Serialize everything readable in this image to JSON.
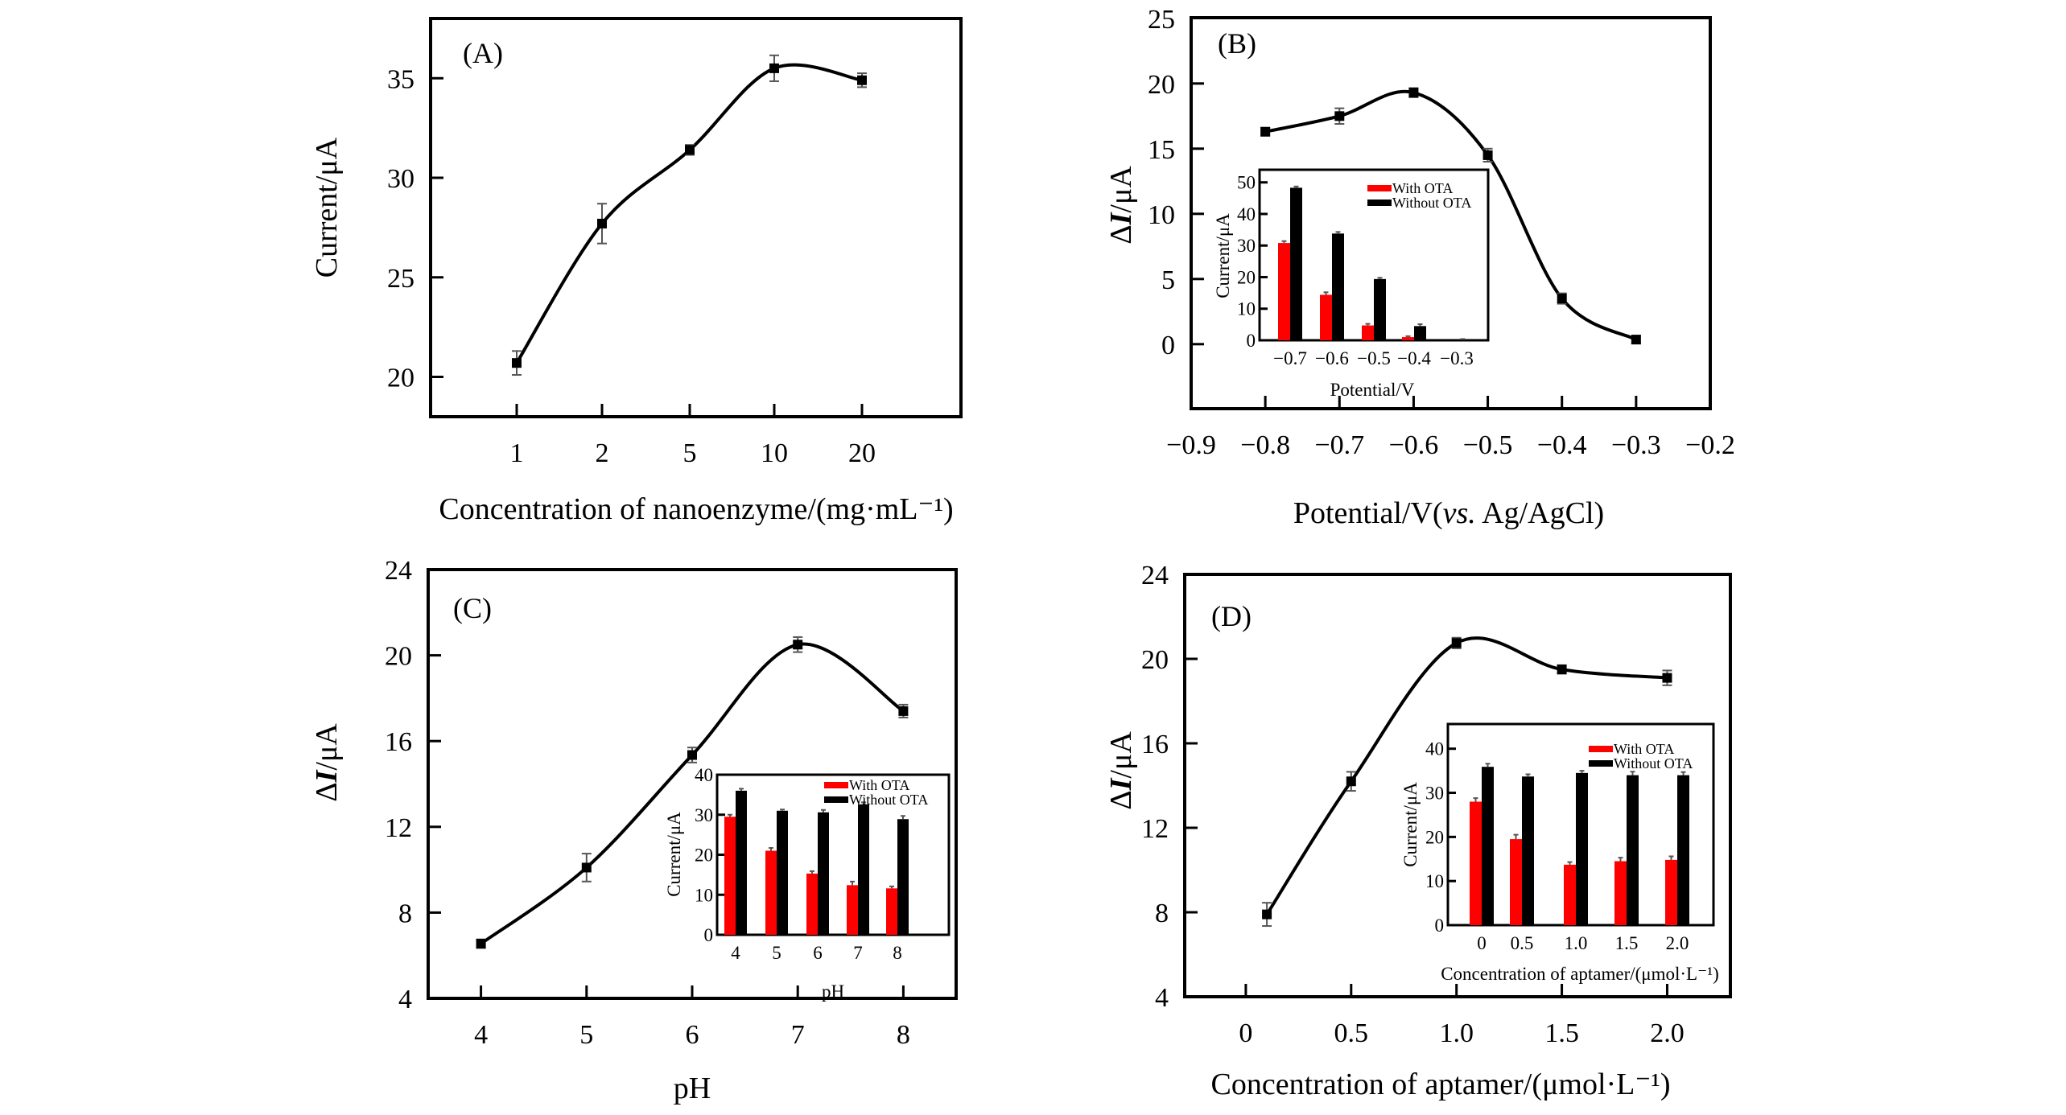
{
  "figure": {
    "panels": [
      "A",
      "B",
      "C",
      "D"
    ]
  },
  "chart_data": [
    {
      "id": "A",
      "type": "line",
      "panel_label": "(A)",
      "xlabel": "Concentration of nanoenzyme/(mg·mL⁻¹)",
      "ylabel": "Current/μA",
      "x_categories": [
        "1",
        "2",
        "5",
        "10",
        "20"
      ],
      "y": [
        20.7,
        27.7,
        31.4,
        35.5,
        34.9
      ],
      "y_err": [
        0.6,
        1.0,
        0.25,
        0.65,
        0.35
      ],
      "ylim": [
        18,
        38
      ],
      "yticks": [
        20,
        25,
        30,
        35
      ],
      "grid": false,
      "marker": "square",
      "smooth": true
    },
    {
      "id": "B",
      "type": "line",
      "panel_label": "(B)",
      "xlabel_main": "Potential/V(",
      "xlabel_italic": "vs.",
      "xlabel_tail": " Ag/AgCl)",
      "ylabel_delta": "Δ",
      "ylabel_italic": "I",
      "ylabel_tail": "/μA",
      "x": [
        -0.8,
        -0.7,
        -0.6,
        -0.5,
        -0.4,
        -0.3
      ],
      "y": [
        16.3,
        17.5,
        19.3,
        14.5,
        3.5,
        0.35
      ],
      "y_err": [
        0.3,
        0.6,
        0.35,
        0.5,
        0.4,
        0.3
      ],
      "xlim": [
        -0.9,
        -0.2
      ],
      "xticks": [
        -0.9,
        -0.8,
        -0.7,
        -0.6,
        -0.5,
        -0.4,
        -0.3,
        -0.2
      ],
      "xtick_labels": [
        "−0.9",
        "−0.8",
        "−0.7",
        "−0.6",
        "−0.5",
        "−0.4",
        "−0.3",
        "−0.2"
      ],
      "ylim": [
        -4.95,
        25.05
      ],
      "yticks": [
        0,
        5,
        10,
        15,
        20,
        25
      ],
      "grid": false,
      "smooth": true,
      "inset": {
        "type": "bar",
        "xlabel": "Potential/V",
        "ylabel": "Current/μA",
        "categories": [
          "−0.7",
          "−0.6",
          "−0.5",
          "−0.4",
          "−0.3"
        ],
        "series": [
          {
            "name": "With OTA",
            "color": "#ff0000",
            "values": [
              30.8,
              14.4,
              4.7,
              1.0,
              0.0
            ],
            "err": [
              0.6,
              0.8,
              0.5,
              0.3,
              0.0
            ]
          },
          {
            "name": "Without OTA",
            "color": "#000000",
            "values": [
              48.3,
              33.8,
              19.4,
              4.5,
              0.3
            ],
            "err": [
              0.4,
              0.5,
              0.4,
              0.6,
              0.1
            ]
          }
        ],
        "ylim": [
          0,
          54
        ],
        "yticks": [
          0,
          10,
          20,
          30,
          40,
          50
        ],
        "legend": "top-right"
      }
    },
    {
      "id": "C",
      "type": "line",
      "panel_label": "(C)",
      "xlabel": "pH",
      "ylabel_delta": "Δ",
      "ylabel_italic": "I",
      "ylabel_tail": "/μA",
      "x": [
        4,
        5,
        6,
        7,
        8
      ],
      "y": [
        6.55,
        10.1,
        15.35,
        20.5,
        17.4
      ],
      "y_err": [
        0.2,
        0.65,
        0.35,
        0.35,
        0.3
      ],
      "xlim": [
        3.5,
        8.5
      ],
      "xticks": [
        4,
        5,
        6,
        7,
        8
      ],
      "ylim": [
        4,
        24
      ],
      "yticks": [
        4,
        8,
        12,
        16,
        20,
        24
      ],
      "grid": false,
      "smooth": true,
      "inset": {
        "type": "bar",
        "xlabel": "pH",
        "ylabel": "Current/μA",
        "categories": [
          "4",
          "5",
          "6",
          "7",
          "8"
        ],
        "series": [
          {
            "name": "With OTA",
            "color": "#ff0000",
            "values": [
              29.5,
              21.0,
              15.3,
              12.4,
              11.6
            ],
            "err": [
              0.5,
              0.7,
              0.6,
              0.9,
              0.5
            ]
          },
          {
            "name": "Without OTA",
            "color": "#000000",
            "values": [
              36.0,
              31.0,
              30.6,
              32.6,
              28.9
            ],
            "err": [
              0.5,
              0.3,
              0.6,
              0.5,
              0.8
            ]
          }
        ],
        "ylim": [
          0,
          40
        ],
        "yticks": [
          0,
          10,
          20,
          30,
          40
        ],
        "legend": "top-right"
      }
    },
    {
      "id": "D",
      "type": "line",
      "panel_label": "(D)",
      "xlabel": "Concentration of aptamer/(μmol·L⁻¹)",
      "ylabel_delta": "Δ",
      "ylabel_italic": "I",
      "ylabel_tail": "/μA",
      "x": [
        0.1,
        0.5,
        1.0,
        1.5,
        2.0
      ],
      "y": [
        7.9,
        14.2,
        20.75,
        19.5,
        19.1
      ],
      "y_err": [
        0.55,
        0.45,
        0.25,
        0.2,
        0.35
      ],
      "xlim": [
        -0.29,
        2.3
      ],
      "xticks": [
        0,
        0.5,
        1.0,
        1.5,
        2.0
      ],
      "xtick_labels": [
        "0",
        "0.5",
        "1.0",
        "1.5",
        "2.0"
      ],
      "ylim": [
        4,
        24
      ],
      "yticks": [
        4,
        8,
        12,
        16,
        20,
        24
      ],
      "grid": false,
      "smooth": true,
      "inset": {
        "type": "bar",
        "xlabel": "Concentration of aptamer/(μmol·L⁻¹)",
        "ylabel": "Current/μA",
        "categories": [
          "0",
          "0.5",
          "1.0",
          "1.5",
          "2.0"
        ],
        "series": [
          {
            "name": "With OTA",
            "color": "#ff0000",
            "values": [
              28.0,
              19.5,
              13.7,
              14.5,
              14.8
            ],
            "err": [
              0.8,
              1.0,
              0.6,
              0.8,
              0.8
            ]
          },
          {
            "name": "Without OTA",
            "color": "#000000",
            "values": [
              35.9,
              33.7,
              34.5,
              34.0,
              34.0
            ],
            "err": [
              0.7,
              0.5,
              0.5,
              0.8,
              0.7
            ]
          }
        ],
        "ylim": [
          0,
          45.6
        ],
        "yticks": [
          0,
          10,
          20,
          30,
          40
        ],
        "legend": "top-right"
      }
    }
  ]
}
